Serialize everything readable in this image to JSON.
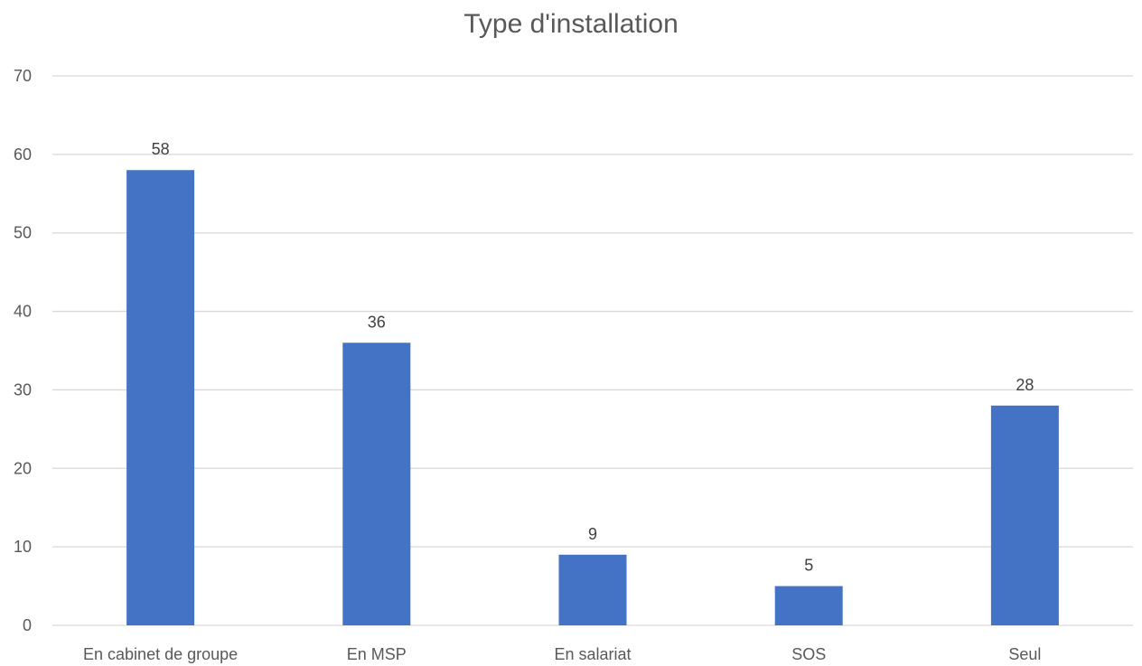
{
  "chart_data": {
    "type": "bar",
    "title": "Type d'installation",
    "categories": [
      "En cabinet de groupe",
      "En MSP",
      "En salariat",
      "SOS",
      "Seul"
    ],
    "series": [
      {
        "values": [
          58,
          36,
          9,
          5,
          28
        ]
      }
    ],
    "ylim": [
      0,
      70
    ],
    "yticks": [
      "0",
      "10",
      "20",
      "30",
      "40",
      "50",
      "60",
      "70"
    ],
    "grid": true,
    "data_labels": true,
    "bar_color": "#4472C4",
    "grid_color": "#D9D9D9"
  }
}
